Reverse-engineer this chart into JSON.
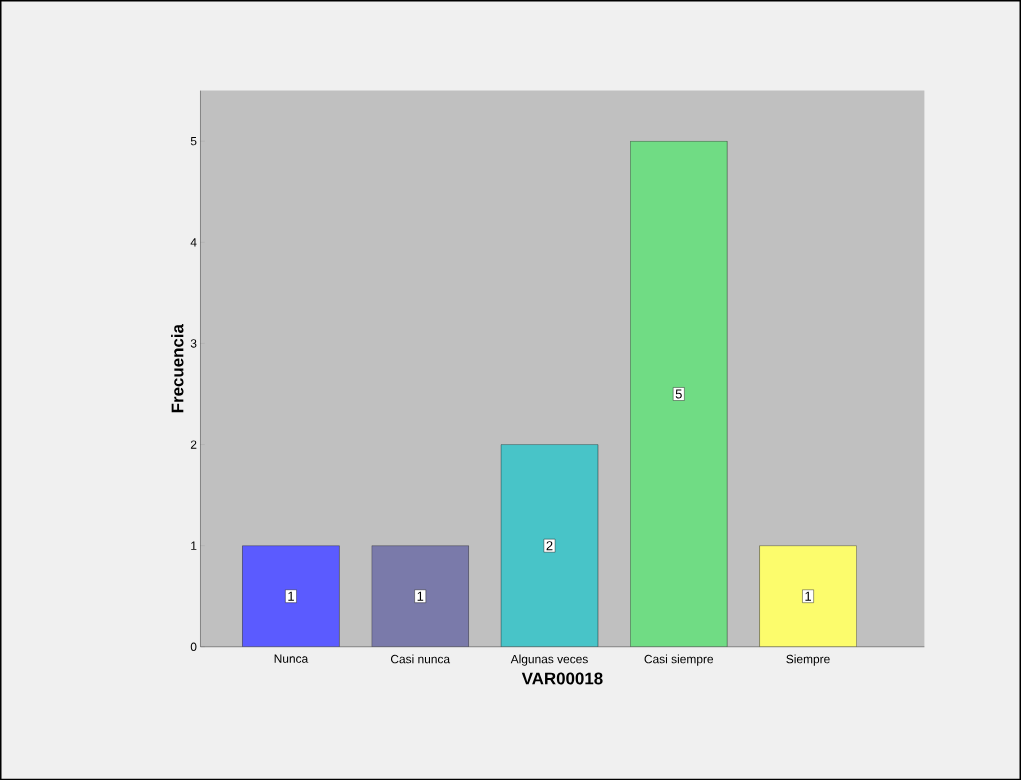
{
  "chart_data": {
    "type": "bar",
    "xlabel": "VAR00018",
    "ylabel": "Frecuencia",
    "categories": [
      "Nunca",
      "Casi nunca",
      "Algunas veces",
      "Casi siempre",
      "Siempre"
    ],
    "values": [
      1,
      1,
      2,
      5,
      1
    ],
    "colors": [
      "#5b5bff",
      "#7a7aaa",
      "#48c4c8",
      "#70dc84",
      "#fcfc6c"
    ],
    "ylim": [
      0,
      5.5
    ],
    "yticks": [
      0,
      1,
      2,
      3,
      4,
      5
    ],
    "data_labels": true
  }
}
